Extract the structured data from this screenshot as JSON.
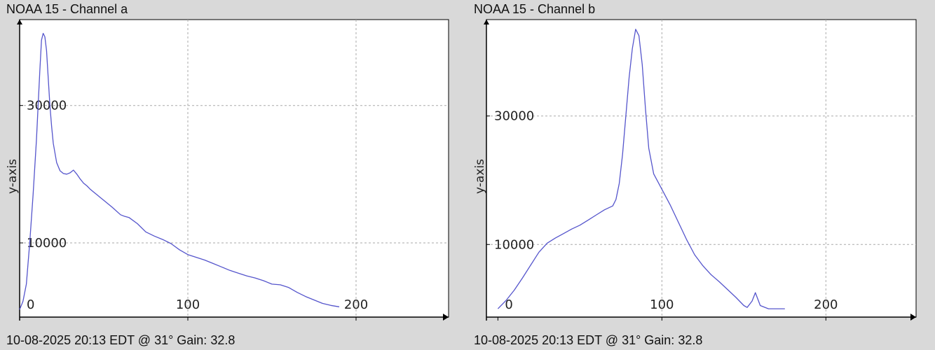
{
  "colors": {
    "background": "#d9d9d9",
    "plot_background": "#ffffff",
    "series_line": "#5555cc",
    "grid": "#aaaaaa"
  },
  "chart_data": [
    {
      "type": "line",
      "title": "NOAA 15 - Channel a",
      "footer": "10-08-2025 20:13 EDT @ 31° Gain: 32.8",
      "ylabel": "y-axis",
      "xlabel": "",
      "grid": true,
      "xlim": [
        0,
        255
      ],
      "ylim": [
        -800,
        42500
      ],
      "x_ticks": [
        0,
        100,
        200
      ],
      "y_ticks": [
        10000,
        30000
      ],
      "series": [
        {
          "x": [
            0,
            2,
            4,
            6,
            8,
            10,
            11,
            12,
            13,
            14,
            15,
            16,
            17,
            18,
            19,
            20,
            22,
            24,
            26,
            28,
            30,
            32,
            34,
            36,
            38,
            40,
            42,
            44,
            46,
            48,
            50,
            55,
            60,
            62,
            65,
            70,
            75,
            80,
            85,
            90,
            95,
            100,
            105,
            110,
            115,
            120,
            125,
            130,
            135,
            140,
            145,
            150,
            155,
            160,
            165,
            170,
            175,
            180,
            185,
            190
          ],
          "y": [
            300,
            1500,
            4000,
            10000,
            17000,
            25000,
            30000,
            35000,
            39500,
            40500,
            40000,
            38000,
            34000,
            30000,
            27000,
            24500,
            21700,
            20500,
            20100,
            20000,
            20200,
            20600,
            20000,
            19300,
            18700,
            18300,
            17800,
            17400,
            17000,
            16600,
            16200,
            15200,
            14100,
            13900,
            13700,
            12800,
            11600,
            11000,
            10500,
            9900,
            9000,
            8300,
            7900,
            7500,
            7000,
            6500,
            6000,
            5600,
            5200,
            4900,
            4500,
            4000,
            3900,
            3500,
            2800,
            2200,
            1700,
            1200,
            900,
            700
          ]
        }
      ]
    },
    {
      "type": "line",
      "title": "NOAA 15 - Channel b",
      "footer": "10-08-2025 20:13 EDT @ 31° Gain: 32.8",
      "ylabel": "y-axis",
      "xlabel": "",
      "grid": true,
      "xlim": [
        -7,
        255
      ],
      "ylim": [
        -1300,
        45000
      ],
      "x_ticks": [
        0,
        100,
        200
      ],
      "y_ticks": [
        10000,
        30000
      ],
      "series": [
        {
          "x": [
            0,
            5,
            10,
            15,
            20,
            25,
            30,
            35,
            40,
            45,
            50,
            55,
            60,
            65,
            70,
            72,
            74,
            76,
            78,
            80,
            82,
            84,
            86,
            88,
            90,
            92,
            95,
            100,
            105,
            110,
            115,
            120,
            125,
            130,
            135,
            140,
            145,
            150,
            152,
            155,
            157,
            160,
            165,
            170,
            175
          ],
          "y": [
            0,
            1300,
            2900,
            4800,
            6800,
            8800,
            10200,
            11000,
            11700,
            12400,
            13000,
            13800,
            14600,
            15400,
            16000,
            17000,
            19500,
            24000,
            30000,
            36000,
            40500,
            43500,
            42500,
            38000,
            31000,
            25000,
            21000,
            18600,
            16200,
            13500,
            10800,
            8400,
            6700,
            5300,
            4200,
            3000,
            1800,
            500,
            200,
            1200,
            2500,
            500,
            0,
            0,
            0
          ]
        }
      ]
    }
  ]
}
